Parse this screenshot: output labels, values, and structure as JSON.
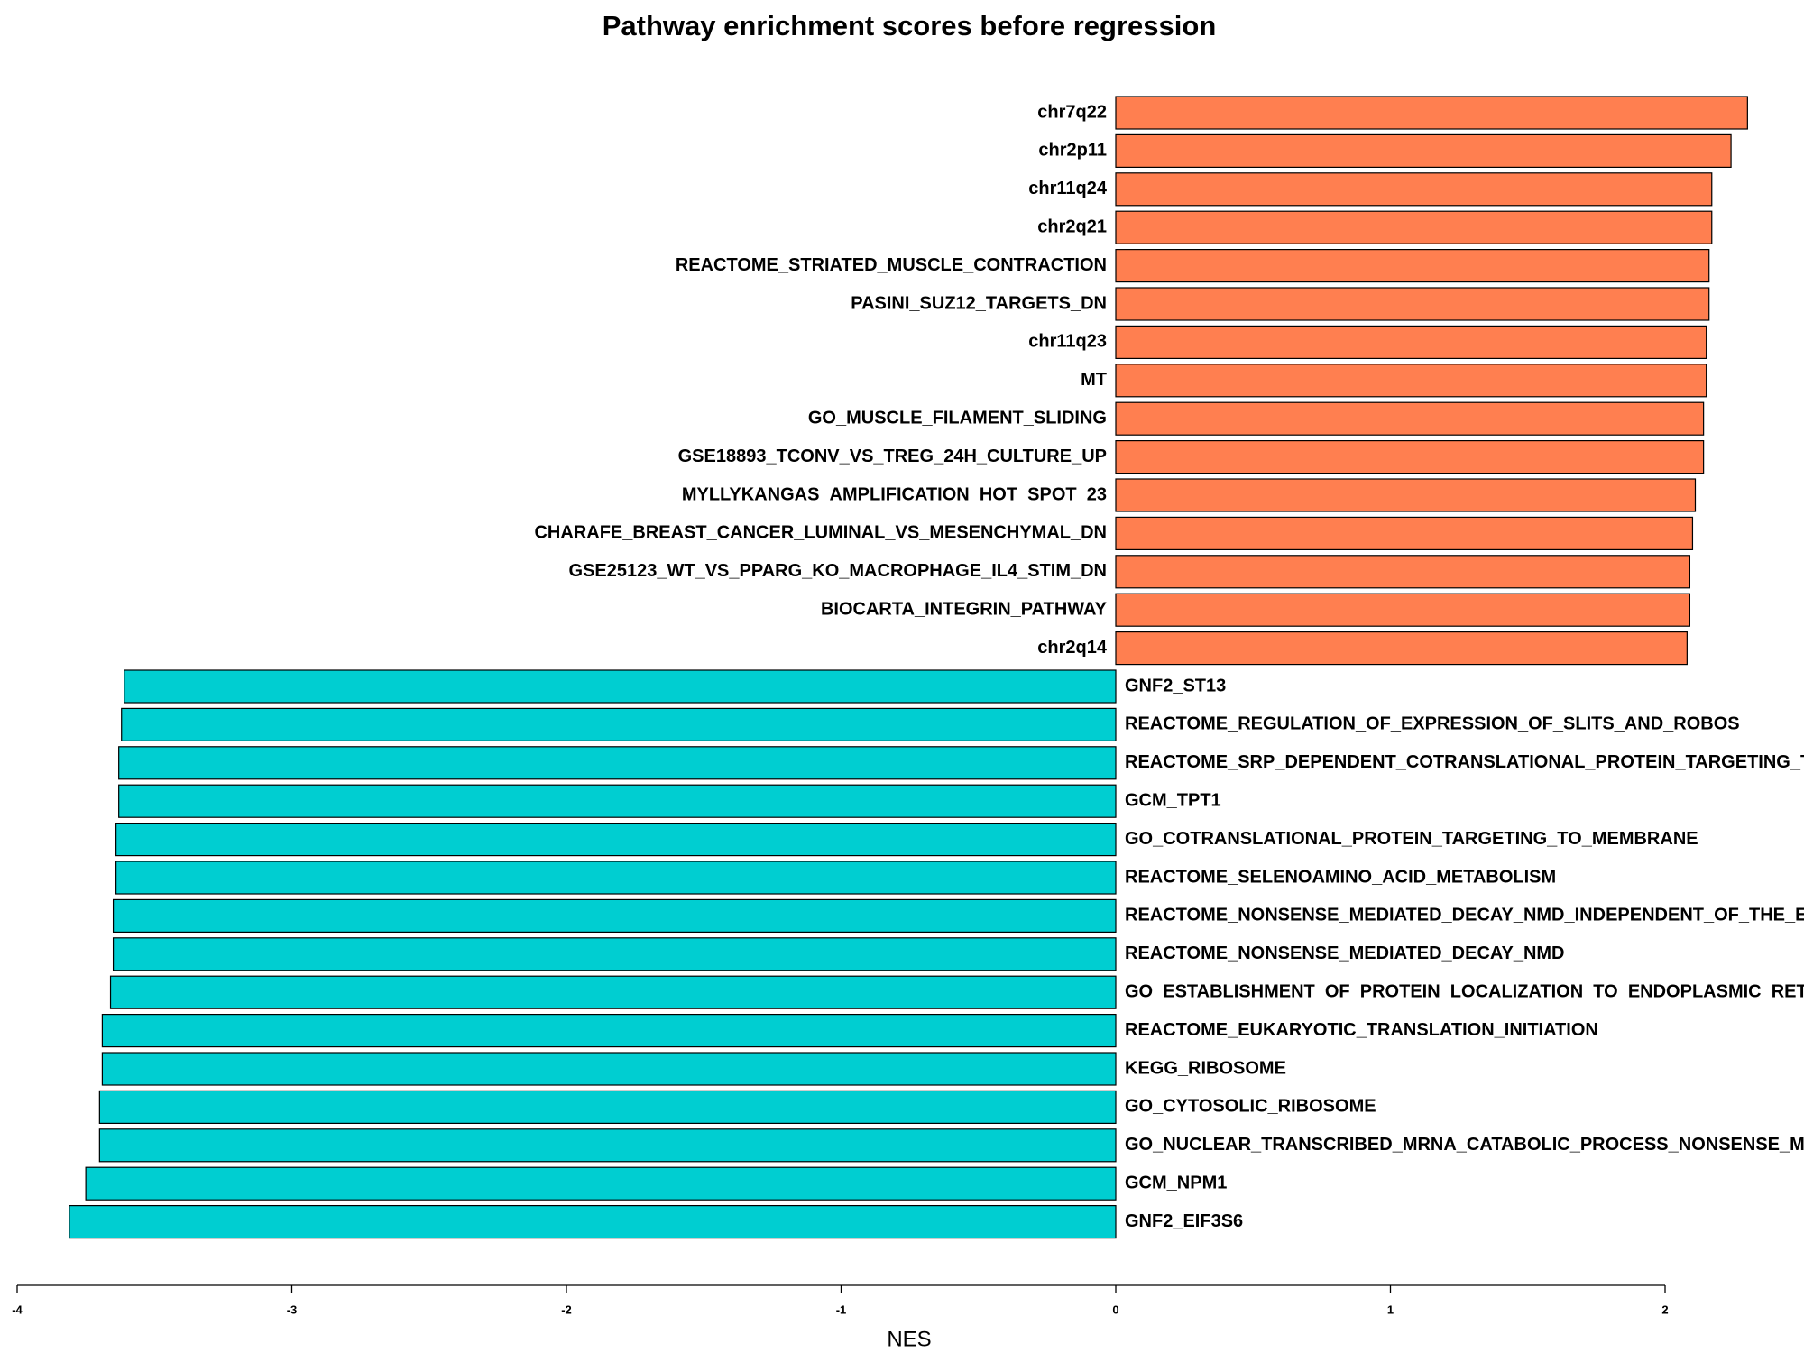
{
  "chart_data": {
    "type": "barh",
    "title": "Pathway enrichment scores before regression",
    "x_label": "NES",
    "categories": [
      "chr7q22",
      "chr2p11",
      "chr11q24",
      "chr2q21",
      "REACTOME_STRIATED_MUSCLE_CONTRACTION",
      "PASINI_SUZ12_TARGETS_DN",
      "chr11q23",
      "MT",
      "GO_MUSCLE_FILAMENT_SLIDING",
      "GSE18893_TCONV_VS_TREG_24H_CULTURE_UP",
      "MYLLYKANGAS_AMPLIFICATION_HOT_SPOT_23",
      "CHARAFE_BREAST_CANCER_LUMINAL_VS_MESENCHYMAL_DN",
      "GSE25123_WT_VS_PPARG_KO_MACROPHAGE_IL4_STIM_DN",
      "BIOCARTA_INTEGRIN_PATHWAY",
      "chr2q14",
      "GNF2_ST13",
      "REACTOME_REGULATION_OF_EXPRESSION_OF_SLITS_AND_ROBOS",
      "REACTOME_SRP_DEPENDENT_COTRANSLATIONAL_PROTEIN_TARGETING_T",
      "GCM_TPT1",
      "GO_COTRANSLATIONAL_PROTEIN_TARGETING_TO_MEMBRANE",
      "REACTOME_SELENOAMINO_ACID_METABOLISM",
      "REACTOME_NONSENSE_MEDIATED_DECAY_NMD_INDEPENDENT_OF_THE_E",
      "REACTOME_NONSENSE_MEDIATED_DECAY_NMD",
      "GO_ESTABLISHMENT_OF_PROTEIN_LOCALIZATION_TO_ENDOPLASMIC_RET",
      "REACTOME_EUKARYOTIC_TRANSLATION_INITIATION",
      "KEGG_RIBOSOME",
      "GO_CYTOSOLIC_RIBOSOME",
      "GO_NUCLEAR_TRANSCRIBED_MRNA_CATABOLIC_PROCESS_NONSENSE_ME",
      "GCM_NPM1",
      "GNF2_EIF3S6"
    ],
    "values": [
      2.3,
      2.24,
      2.17,
      2.17,
      2.16,
      2.16,
      2.15,
      2.15,
      2.14,
      2.14,
      2.11,
      2.1,
      2.09,
      2.09,
      2.08,
      -3.61,
      -3.62,
      -3.63,
      -3.63,
      -3.64,
      -3.64,
      -3.65,
      -3.65,
      -3.66,
      -3.69,
      -3.69,
      -3.7,
      -3.7,
      -3.75,
      -3.81
    ],
    "positive_color": "#ff7f50",
    "negative_color": "#00ced1",
    "xlim": [
      -4,
      2
    ],
    "xticks": [
      -4,
      -3,
      -2,
      -1,
      0,
      1,
      2
    ]
  }
}
